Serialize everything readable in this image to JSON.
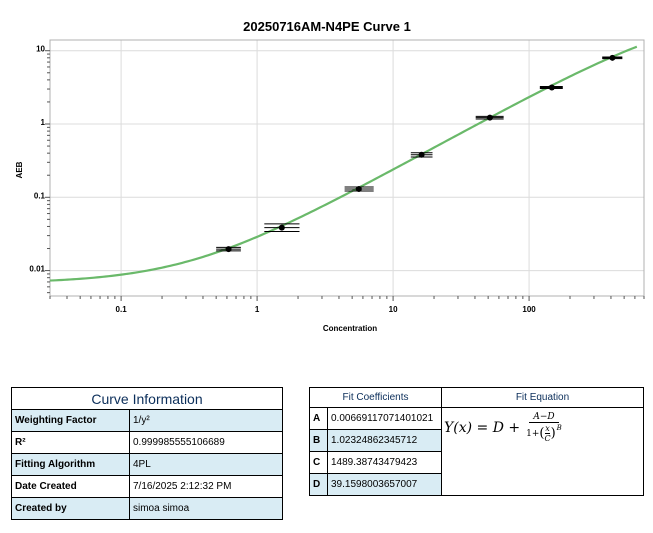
{
  "chart_data": {
    "type": "scatter",
    "title": "20250716AM-N4PE Curve 1",
    "xlabel": "Concentration",
    "ylabel": "AEB",
    "x_scale": "log",
    "y_scale": "log",
    "xlim": [
      0.03,
      700
    ],
    "ylim": [
      0.0045,
      14
    ],
    "grid": true,
    "x_ticks": [
      0.1,
      1,
      10,
      100
    ],
    "x_tick_labels": [
      "0.1",
      "1",
      "10",
      "100"
    ],
    "y_ticks": [
      0.01,
      0.1,
      1,
      10
    ],
    "y_tick_labels": [
      "0.01",
      "0.1",
      "1",
      "10"
    ],
    "points": [
      {
        "x": 0.617,
        "y": 0.0196,
        "xerr": [
          0.5,
          0.76
        ],
        "yerr": [
          0.0186,
          0.0207
        ]
      },
      {
        "x": 1.52,
        "y": 0.0385,
        "xerr": [
          1.13,
          2.05
        ],
        "yerr": [
          0.0341,
          0.0434
        ]
      },
      {
        "x": 5.6,
        "y": 0.13,
        "xerr": [
          4.4,
          7.2
        ],
        "yerr": [
          0.122,
          0.138
        ]
      },
      {
        "x": 16.2,
        "y": 0.38,
        "xerr": [
          13.5,
          19.5
        ],
        "yerr": [
          0.355,
          0.405
        ]
      },
      {
        "x": 51.5,
        "y": 1.22,
        "xerr": [
          40.5,
          65.0
        ],
        "yerr": [
          1.17,
          1.27
        ]
      },
      {
        "x": 147,
        "y": 3.15,
        "xerr": [
          120,
          177
        ],
        "yerr": [
          3.05,
          3.25
        ]
      },
      {
        "x": 410,
        "y": 8.0,
        "xerr": [
          345,
          485
        ],
        "yerr": [
          7.8,
          8.2
        ]
      }
    ],
    "curve": {
      "model": "4PL",
      "A": 0.00669117071401021,
      "B": 1.02324862345712,
      "C": 1489.38743479423,
      "D": 39.1598003657007,
      "x_range": [
        0.03,
        620
      ]
    },
    "colors": {
      "curve": "#6ab96a",
      "point": "#000000",
      "grid": "#dcdcdc"
    }
  },
  "curve_info": {
    "title": "Curve Information",
    "rows": [
      {
        "label": "Weighting Factor",
        "value": "1/y²"
      },
      {
        "label": "R²",
        "value": "0.999985555106689"
      },
      {
        "label": "Fitting Algorithm",
        "value": "4PL"
      },
      {
        "label": "Date Created",
        "value": "7/16/2025 2:12:32 PM"
      },
      {
        "label": "Created by",
        "value": "simoa simoa"
      }
    ]
  },
  "fit": {
    "coef_title": "Fit Coefficients",
    "eq_title": "Fit Equation",
    "coefficients": [
      {
        "key": "A",
        "value": "0.00669117071401021"
      },
      {
        "key": "B",
        "value": "1.02324862345712"
      },
      {
        "key": "C",
        "value": "1489.38743479423"
      },
      {
        "key": "D",
        "value": "39.1598003657007"
      }
    ],
    "equation": {
      "lhs": "Y(x) = D +",
      "numerator": "A−D",
      "den_prefix": "1+",
      "x_sym": "x",
      "c_sym": "C",
      "exp": "B"
    }
  }
}
